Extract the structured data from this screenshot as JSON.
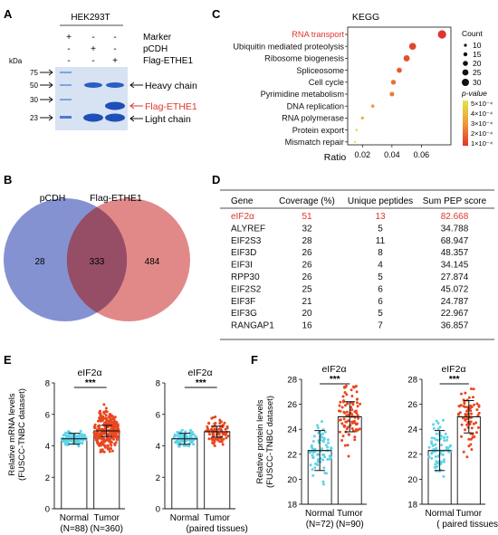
{
  "panels": {
    "A": {
      "letter": "A",
      "cell_line": "HEK293T",
      "lane_rows": [
        {
          "label": "Marker",
          "marks": [
            "+",
            "-",
            "-"
          ]
        },
        {
          "label": "pCDH",
          "marks": [
            "-",
            "+",
            "-"
          ]
        },
        {
          "label": "Flag-ETHE1",
          "marks": [
            "-",
            "-",
            "+"
          ]
        }
      ],
      "kda_label": "kDa",
      "mw_markers": [
        "75",
        "50",
        "30",
        "23"
      ],
      "band_labels": {
        "heavy": "Heavy chain",
        "flag": "Flag-ETHE1",
        "light": "Light chain"
      },
      "colors": {
        "gel_bg": "#d7e2f3",
        "band": "#1f4fb8",
        "highlight": "#e0352c"
      }
    },
    "B": {
      "letter": "B",
      "set_left": "pCDH",
      "set_right": "Flag-ETHE1",
      "only_left": "28",
      "overlap": "333",
      "only_right": "484",
      "colors": {
        "left": "#6f7fc9",
        "right": "#d96b6b",
        "overlap": "#8f4a63"
      }
    },
    "C": {
      "letter": "C",
      "title": "KEGG",
      "xlabel": "Ratio",
      "size_legend_title": "Count",
      "size_legend": [
        "10",
        "15",
        "20",
        "25",
        "30"
      ],
      "color_legend_title": "p-value",
      "color_legend": [
        "5×10⁻⁴",
        "4×10⁻⁴",
        "3×10⁻⁴",
        "2×10⁻⁴",
        "1×10⁻⁴"
      ],
      "highlight_color": "#e0352c"
    },
    "D": {
      "letter": "D",
      "headers": [
        "Gene",
        "Coverage (%)",
        "Unique peptides",
        "Sum PEP score"
      ],
      "rows": [
        [
          "eIF2α",
          "51",
          "13",
          "82.668"
        ],
        [
          "ALYREF",
          "32",
          "5",
          "34.788"
        ],
        [
          "EIF2S3",
          "28",
          "11",
          "68.947"
        ],
        [
          "EIF3D",
          "26",
          "8",
          "48.357"
        ],
        [
          "EIF3I",
          "26",
          "4",
          "34.145"
        ],
        [
          "RPP30",
          "26",
          "5",
          "27.874"
        ],
        [
          "EIF2S2",
          "25",
          "6",
          "45.072"
        ],
        [
          "EIF3F",
          "21",
          "6",
          "24.787"
        ],
        [
          "EIF3G",
          "20",
          "5",
          "22.967"
        ],
        [
          "RANGAP1",
          "16",
          "7",
          "36.857"
        ]
      ],
      "highlight_row": 0,
      "highlight_color": "#e0352c"
    },
    "E": {
      "letter": "E"
    },
    "F": {
      "letter": "F"
    }
  },
  "chart_data": [
    {
      "panel": "C",
      "type": "scatter",
      "title": "KEGG",
      "xlabel": "Ratio",
      "xlim": [
        0.01,
        0.08
      ],
      "xticks": [
        "0.02",
        "0.04",
        "0.06"
      ],
      "categories": [
        "RNA transport",
        "Ubiquitin mediated proteolysis",
        "Ribosome biogenesis",
        "Spliceosome",
        "Cell cycle",
        "Pyrimidine metabolism",
        "DNA replication",
        "RNA polymerase",
        "Protein export",
        "Mismatch repair"
      ],
      "x": [
        0.074,
        0.054,
        0.05,
        0.045,
        0.041,
        0.04,
        0.027,
        0.02,
        0.016,
        0.015
      ],
      "count": [
        30,
        25,
        22,
        18,
        17,
        16,
        11,
        10,
        8,
        7
      ],
      "p_value": [
        1e-05,
        5e-05,
        7e-05,
        0.0001,
        0.00015,
        0.00018,
        0.00025,
        0.00032,
        0.00048,
        0.0005
      ],
      "color_scale": [
        "#e4e44f",
        "#e0352c"
      ]
    },
    {
      "panel": "E",
      "type": "bar",
      "title": "eIF2α",
      "ylabel": "Relative mRNA levels\n(FUSCC-TNBC dataset)",
      "ylim": [
        0,
        8
      ],
      "yticks": [
        "0",
        "2",
        "4",
        "6",
        "8"
      ],
      "categories": [
        "Normal\n(N=88)",
        "Tumor\n(N=360)"
      ],
      "values": [
        4.45,
        4.95
      ],
      "spread": [
        [
          3.9,
          5.4
        ],
        [
          3.6,
          7.3
        ]
      ],
      "n": [
        88,
        360
      ],
      "significance": "***",
      "point_colors": [
        "#5fd3e8",
        "#e8471f"
      ]
    },
    {
      "panel": "E",
      "type": "bar",
      "title": "eIF2α",
      "ylim": [
        0,
        8
      ],
      "yticks": [
        "0",
        "2",
        "4",
        "6",
        "8"
      ],
      "categories": [
        "Normal",
        "Tumor\n(paired tissues)"
      ],
      "values": [
        4.45,
        4.9
      ],
      "spread": [
        [
          3.9,
          5.4
        ],
        [
          4.0,
          6.3
        ]
      ],
      "n": [
        88,
        88
      ],
      "significance": "***",
      "point_colors": [
        "#5fd3e8",
        "#e8471f"
      ]
    },
    {
      "panel": "F",
      "type": "bar",
      "title": "eIF2α",
      "ylabel": "Relative protein levels\n(FUSCC-TNBC dataset)",
      "ylim": [
        18,
        28
      ],
      "yticks": [
        "18",
        "20",
        "22",
        "24",
        "26",
        "28"
      ],
      "categories": [
        "Normal\n(N=72)",
        "Tumor\n(N=90)"
      ],
      "values": [
        22.3,
        25.0
      ],
      "sd": [
        1.6,
        1.2
      ],
      "spread": [
        [
          19.0,
          25.5
        ],
        [
          19.5,
          27.5
        ]
      ],
      "n": [
        72,
        90
      ],
      "significance": "***",
      "point_colors": [
        "#5fd3e8",
        "#e8471f"
      ]
    },
    {
      "panel": "F",
      "type": "bar",
      "title": "eIF2α",
      "ylim": [
        18,
        28
      ],
      "yticks": [
        "18",
        "20",
        "22",
        "24",
        "26",
        "28"
      ],
      "categories": [
        "Normal",
        "Tumor\n( paired tissues)"
      ],
      "values": [
        22.3,
        25.0
      ],
      "sd": [
        1.6,
        1.3
      ],
      "spread": [
        [
          19.0,
          25.5
        ],
        [
          19.5,
          27.3
        ]
      ],
      "n": [
        72,
        72
      ],
      "significance": "***",
      "point_colors": [
        "#5fd3e8",
        "#e8471f"
      ]
    }
  ]
}
